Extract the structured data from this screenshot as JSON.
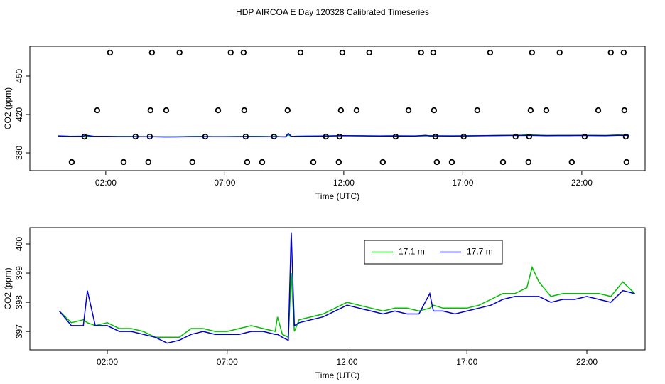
{
  "chart_data": [
    {
      "type": "scatter",
      "title": "HDP AIRCOA E  Day 120328  Calibrated Timeseries",
      "x_label": "Time (UTC)",
      "y_label": "CO2 (ppm)",
      "xlim": [
        -1.19,
        24.66
      ],
      "ylim": [
        361.5,
        491.1
      ],
      "xticks": [
        {
          "value": 2,
          "label": "02:00"
        },
        {
          "value": 7,
          "label": "07:00"
        },
        {
          "value": 12,
          "label": "12:00"
        },
        {
          "value": 17,
          "label": "17:00"
        },
        {
          "value": 22,
          "label": "22:00"
        }
      ],
      "yticks": [
        380,
        420,
        460
      ],
      "point_color": "#000000",
      "x": [
        2.18,
        3.94,
        5.1,
        7.25,
        7.79,
        10.18,
        11.94,
        13.07,
        15.25,
        15.76,
        18.15,
        19.91,
        21.07,
        23.22,
        23.76,
        1.64,
        3.88,
        4.54,
        6.72,
        7.82,
        9.64,
        11.88,
        12.54,
        14.72,
        15.79,
        17.61,
        19.85,
        20.51,
        22.69,
        23.79,
        1.1,
        3.25,
        3.85,
        6.18,
        7.88,
        9.07,
        11.25,
        11.82,
        14.18,
        15.85,
        17.04,
        19.22,
        19.79,
        22.12,
        23.85,
        0.57,
        2.75,
        3.79,
        5.64,
        7.94,
        8.57,
        10.72,
        11.79,
        13.64,
        15.91,
        16.54,
        18.69,
        19.76,
        21.58,
        23.88
      ],
      "values": [
        484.4,
        484.4,
        484.4,
        484.4,
        484.4,
        484.4,
        484.4,
        484.4,
        484.4,
        484.4,
        484.4,
        484.4,
        484.4,
        484.4,
        484.4,
        424.4,
        424.4,
        424.4,
        424.4,
        424.4,
        424.4,
        424.4,
        424.4,
        424.4,
        424.4,
        424.4,
        424.4,
        424.4,
        424.4,
        424.4,
        397.0,
        397.0,
        397.0,
        397.0,
        397.0,
        397.0,
        397.0,
        397.0,
        397.0,
        397.0,
        397.0,
        397.0,
        397.0,
        397.0,
        397.0,
        370.4,
        370.4,
        370.4,
        370.4,
        370.4,
        370.4,
        370.4,
        370.4,
        370.4,
        370.4,
        370.4,
        370.4,
        370.4,
        370.4,
        370.4
      ]
    },
    {
      "type": "line",
      "x_label": "Time (UTC)",
      "y_label": "CO2 (ppm)",
      "xlim": [
        -1.23,
        24.43
      ],
      "ylim": [
        396.37,
        400.56
      ],
      "xticks": [
        {
          "value": 2,
          "label": "02:00"
        },
        {
          "value": 7,
          "label": "07:00"
        },
        {
          "value": 12,
          "label": "12:00"
        },
        {
          "value": 17,
          "label": "17:00"
        },
        {
          "value": 22,
          "label": "22:00"
        }
      ],
      "yticks": [
        397,
        398,
        399,
        400
      ],
      "legend": "top-center",
      "x": [
        0,
        0.5,
        1.0,
        1.17,
        1.5,
        2.0,
        2.5,
        3.0,
        3.5,
        4.0,
        4.5,
        5.0,
        5.5,
        6.0,
        6.5,
        7.0,
        7.5,
        8.0,
        8.5,
        9.0,
        9.1,
        9.3,
        9.55,
        9.67,
        9.8,
        10.0,
        10.5,
        11.0,
        11.5,
        12.0,
        12.5,
        13.0,
        13.5,
        14.0,
        14.5,
        15.0,
        15.45,
        15.6,
        16.0,
        16.5,
        17.0,
        17.5,
        18.0,
        18.5,
        19.0,
        19.5,
        19.72,
        20.0,
        20.5,
        21.0,
        21.5,
        22.0,
        22.5,
        23.0,
        23.5,
        24.0
      ],
      "series": [
        {
          "name": "17.1 m",
          "color": "#00c000",
          "values": [
            397.7,
            397.3,
            397.4,
            397.3,
            397.2,
            397.3,
            397.1,
            397.1,
            397.0,
            396.8,
            396.8,
            396.8,
            397.1,
            397.1,
            397.0,
            397.0,
            397.1,
            397.2,
            397.1,
            397.0,
            397.5,
            396.9,
            396.8,
            399.0,
            397.0,
            397.4,
            397.5,
            397.6,
            397.8,
            398.0,
            397.9,
            397.8,
            397.7,
            397.8,
            397.8,
            397.7,
            397.8,
            397.9,
            397.8,
            397.8,
            397.8,
            397.9,
            398.1,
            398.3,
            398.3,
            398.5,
            399.2,
            398.7,
            398.2,
            398.3,
            398.3,
            398.3,
            398.3,
            398.2,
            398.7,
            398.3
          ]
        },
        {
          "name": "17.7 m",
          "color": "#0000cc",
          "values": [
            397.7,
            397.2,
            397.2,
            398.4,
            397.2,
            397.2,
            397.0,
            397.0,
            396.9,
            396.8,
            396.6,
            396.7,
            396.9,
            397.0,
            396.9,
            396.9,
            396.9,
            397.0,
            397.0,
            396.9,
            396.9,
            396.8,
            396.7,
            400.4,
            397.2,
            397.3,
            397.4,
            397.5,
            397.7,
            397.9,
            397.8,
            397.7,
            397.6,
            397.7,
            397.6,
            397.6,
            398.3,
            397.7,
            397.7,
            397.6,
            397.7,
            397.8,
            397.9,
            398.1,
            398.2,
            398.2,
            398.2,
            398.2,
            398.0,
            398.1,
            398.1,
            398.2,
            398.1,
            398.0,
            398.4,
            398.3
          ]
        }
      ]
    }
  ]
}
